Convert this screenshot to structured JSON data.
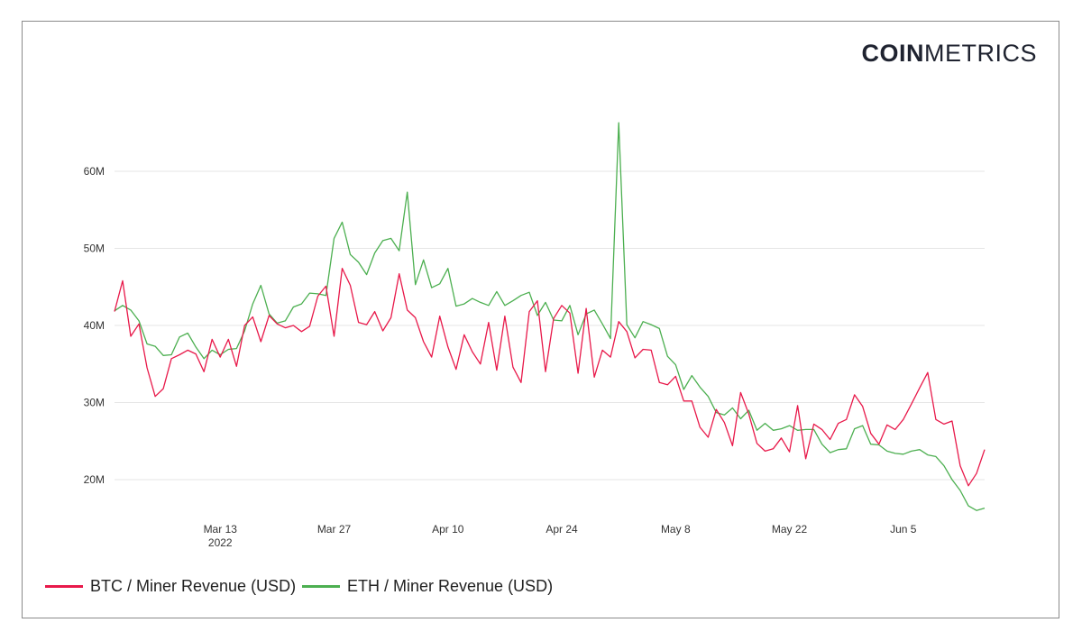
{
  "brand": {
    "logo_bold": "COIN",
    "logo_light": "METRICS"
  },
  "colors": {
    "btc": "#e8194a",
    "eth": "#4caf50",
    "grid": "#e6e6e6",
    "text": "#333333"
  },
  "chart_data": {
    "type": "line",
    "title": "",
    "xlabel": "",
    "ylabel": "",
    "ylim": [
      15,
      70
    ],
    "y_ticks": [
      20,
      30,
      40,
      50,
      60
    ],
    "y_tick_labels": [
      "20M",
      "30M",
      "40M",
      "50M",
      "60M"
    ],
    "x_start_date": "2022-02-28",
    "x_ticks": [
      {
        "day": 13,
        "label": "Mar 13",
        "sublabel": "2022"
      },
      {
        "day": 27,
        "label": "Mar 27",
        "sublabel": ""
      },
      {
        "day": 41,
        "label": "Apr 10",
        "sublabel": ""
      },
      {
        "day": 55,
        "label": "Apr 24",
        "sublabel": ""
      },
      {
        "day": 69,
        "label": "May 8",
        "sublabel": ""
      },
      {
        "day": 83,
        "label": "May 22",
        "sublabel": ""
      },
      {
        "day": 97,
        "label": "Jun 5",
        "sublabel": ""
      }
    ],
    "grid": true,
    "legend_position": "bottom-left",
    "series": [
      {
        "name": "BTC / Miner Revenue (USD)",
        "color": "#e8194a",
        "values": [
          41.8,
          45.8,
          38.6,
          40.2,
          34.5,
          30.8,
          31.8,
          35.7,
          36.2,
          36.8,
          36.3,
          34.0,
          38.2,
          35.9,
          38.2,
          34.7,
          40.0,
          41.1,
          37.9,
          41.3,
          40.2,
          39.7,
          40.0,
          39.2,
          39.9,
          43.8,
          45.1,
          38.6,
          47.4,
          45.2,
          40.4,
          40.1,
          41.8,
          39.3,
          41.0,
          46.7,
          42.0,
          41.0,
          37.9,
          35.9,
          41.2,
          37.2,
          34.3,
          38.8,
          36.6,
          35.0,
          40.4,
          34.2,
          41.2,
          34.6,
          32.6,
          41.8,
          43.2,
          34.0,
          40.9,
          42.6,
          41.6,
          33.8,
          42.2,
          33.3,
          36.8,
          35.9,
          40.5,
          39.2,
          35.8,
          36.9,
          36.8,
          32.6,
          32.3,
          33.4,
          30.2,
          30.2,
          26.8,
          25.5,
          29.1,
          27.4,
          24.4,
          31.3,
          28.5,
          24.7,
          23.7,
          24.0,
          25.4,
          23.6,
          29.6,
          22.7,
          27.2,
          26.5,
          25.2,
          27.3,
          27.8,
          31.0,
          29.5,
          26.0,
          24.6,
          27.1,
          26.5,
          27.8,
          29.8,
          31.9,
          33.9,
          27.8,
          27.2,
          27.6,
          21.8,
          19.2,
          20.8,
          23.9
        ]
      },
      {
        "name": "ETH / Miner Revenue (USD)",
        "color": "#4caf50",
        "values": [
          41.9,
          42.6,
          42.0,
          40.6,
          37.6,
          37.3,
          36.1,
          36.2,
          38.5,
          39.0,
          37.2,
          35.7,
          36.8,
          36.2,
          36.9,
          37.0,
          39.3,
          42.8,
          45.2,
          41.5,
          40.3,
          40.6,
          42.4,
          42.8,
          44.2,
          44.1,
          43.9,
          51.3,
          53.4,
          49.2,
          48.2,
          46.6,
          49.4,
          51.0,
          51.3,
          49.7,
          57.3,
          45.3,
          48.5,
          44.9,
          45.4,
          47.4,
          42.5,
          42.8,
          43.5,
          43.0,
          42.6,
          44.4,
          42.6,
          43.2,
          43.9,
          44.3,
          41.3,
          43.0,
          40.7,
          40.6,
          42.6,
          38.8,
          41.5,
          42.0,
          40.2,
          38.3,
          66.3,
          40.1,
          38.4,
          40.5,
          40.1,
          39.6,
          36.0,
          34.9,
          31.7,
          33.5,
          32.0,
          30.8,
          28.7,
          28.4,
          29.3,
          27.9,
          29.0,
          26.4,
          27.3,
          26.4,
          26.6,
          27.0,
          26.4,
          26.5,
          26.5,
          24.6,
          23.5,
          23.9,
          24.0,
          26.6,
          27.0,
          24.6,
          24.5,
          23.7,
          23.4,
          23.3,
          23.7,
          23.9,
          23.2,
          23.0,
          21.8,
          20.0,
          18.6,
          16.6,
          16.0,
          16.3
        ]
      }
    ]
  }
}
